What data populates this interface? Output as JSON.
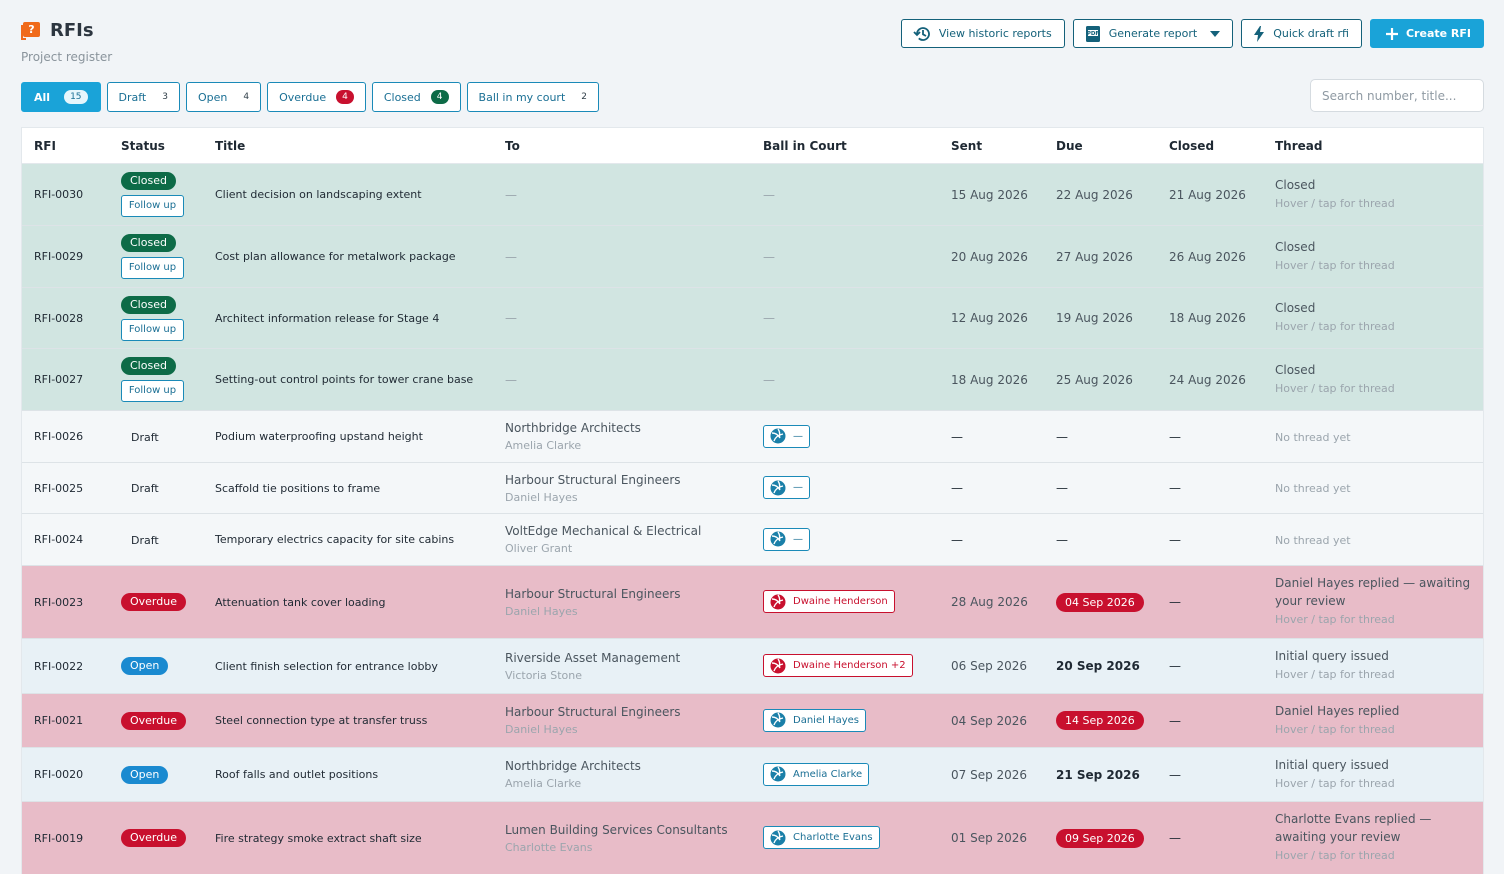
{
  "header": {
    "title": "RFIs",
    "subtitle": "Project register"
  },
  "actions": {
    "historic": "View historic reports",
    "generate": "Generate report",
    "quick": "Quick draft rfi",
    "create": "Create RFI"
  },
  "filters": [
    {
      "label": "All",
      "count": "15"
    },
    {
      "label": "Draft",
      "count": "3"
    },
    {
      "label": "Open",
      "count": "4"
    },
    {
      "label": "Overdue",
      "count": "4"
    },
    {
      "label": "Closed",
      "count": "4"
    },
    {
      "label": "Ball in my court",
      "count": "2"
    }
  ],
  "search": {
    "placeholder": "Search number, title..."
  },
  "columns": {
    "rfi": "RFI",
    "status": "Status",
    "title": "Title",
    "to": "To",
    "ball": "Ball in Court",
    "sent": "Sent",
    "due": "Due",
    "closed": "Closed",
    "thread": "Thread"
  },
  "common": {
    "follow_up": "Follow up",
    "hint": "Hover / tap for thread",
    "dash": "—",
    "no_thread": "No thread yet"
  },
  "rows": [
    {
      "id": "RFI-0030",
      "status": "Closed",
      "title": "Client decision on landscaping extent",
      "sent": "15 Aug 2026",
      "due": "22 Aug 2026",
      "closed": "21 Aug 2026",
      "thread": "Closed"
    },
    {
      "id": "RFI-0029",
      "status": "Closed",
      "title": "Cost plan allowance for metalwork package",
      "sent": "20 Aug 2026",
      "due": "27 Aug 2026",
      "closed": "26 Aug 2026",
      "thread": "Closed"
    },
    {
      "id": "RFI-0028",
      "status": "Closed",
      "title": "Architect information release for Stage 4",
      "sent": "12 Aug 2026",
      "due": "19 Aug 2026",
      "closed": "18 Aug 2026",
      "thread": "Closed"
    },
    {
      "id": "RFI-0027",
      "status": "Closed",
      "title": "Setting-out control points for tower crane base",
      "sent": "18 Aug 2026",
      "due": "25 Aug 2026",
      "closed": "24 Aug 2026",
      "thread": "Closed"
    },
    {
      "id": "RFI-0026",
      "status": "Draft",
      "title": "Podium waterproofing upstand height",
      "org": "Northbridge Architects",
      "person": "Amelia Clarke",
      "ball": "—"
    },
    {
      "id": "RFI-0025",
      "status": "Draft",
      "title": "Scaffold tie positions to frame",
      "org": "Harbour Structural Engineers",
      "person": "Daniel Hayes",
      "ball": "—"
    },
    {
      "id": "RFI-0024",
      "status": "Draft",
      "title": "Temporary electrics capacity for site cabins",
      "org": "VoltEdge Mechanical & Electrical",
      "person": "Oliver Grant",
      "ball": "—"
    },
    {
      "id": "RFI-0023",
      "status": "Overdue",
      "title": "Attenuation tank cover loading",
      "org": "Harbour Structural Engineers",
      "person": "Daniel Hayes",
      "ball": "Dwaine Henderson",
      "sent": "28 Aug 2026",
      "due": "04 Sep 2026",
      "thread": "Daniel Hayes replied — awaiting your review"
    },
    {
      "id": "RFI-0022",
      "status": "Open",
      "title": "Client finish selection for entrance lobby",
      "org": "Riverside Asset Management",
      "person": "Victoria Stone",
      "ball": "Dwaine Henderson +2",
      "sent": "06 Sep 2026",
      "due": "20 Sep 2026",
      "thread": "Initial query issued"
    },
    {
      "id": "RFI-0021",
      "status": "Overdue",
      "title": "Steel connection type at transfer truss",
      "org": "Harbour Structural Engineers",
      "person": "Daniel Hayes",
      "ball": "Daniel Hayes",
      "sent": "04 Sep 2026",
      "due": "14 Sep 2026",
      "thread": "Daniel Hayes replied"
    },
    {
      "id": "RFI-0020",
      "status": "Open",
      "title": "Roof falls and outlet positions",
      "org": "Northbridge Architects",
      "person": "Amelia Clarke",
      "ball": "Amelia Clarke",
      "sent": "07 Sep 2026",
      "due": "21 Sep 2026",
      "thread": "Initial query issued"
    },
    {
      "id": "RFI-0019",
      "status": "Overdue",
      "title": "Fire strategy smoke extract shaft size",
      "org": "Lumen Building Services Consultants",
      "person": "Charlotte Evans",
      "ball": "Charlotte Evans",
      "sent": "01 Sep 2026",
      "due": "09 Sep 2026",
      "thread": "Charlotte Evans replied — awaiting your review"
    }
  ]
}
